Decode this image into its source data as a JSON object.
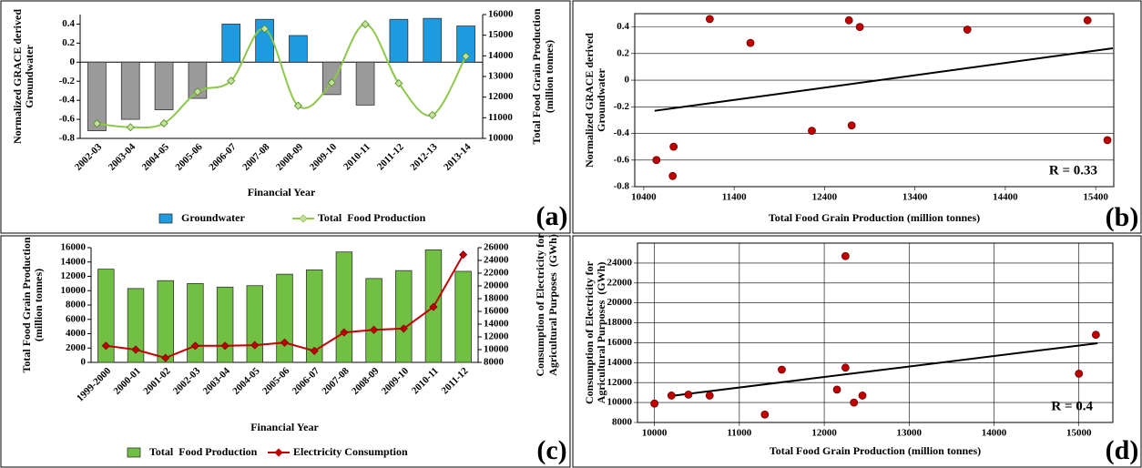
{
  "chart_data": [
    {
      "type": "combo",
      "panel_label": "(a)",
      "x_label": "Financial Year",
      "y_label": [
        "Normalized GRACE derived",
        "Groundwater"
      ],
      "y2_label": [
        "Total Food Grain Production",
        "(million tonnes)"
      ],
      "categories": [
        "2002-03",
        "2003-04",
        "2004-05",
        "2005-06",
        "2006-07",
        "2007-08",
        "2008-09",
        "2009-10",
        "2010-11",
        "2011-12",
        "2012-13",
        "2013-14"
      ],
      "ylim": [
        -0.8,
        0.5
      ],
      "yticks": [
        -0.8,
        -0.6,
        -0.4,
        -0.2,
        0,
        0.2,
        0.4
      ],
      "y2lim": [
        10000,
        16000
      ],
      "y2ticks": [
        10000,
        11000,
        12000,
        13000,
        14000,
        15000,
        16000
      ],
      "series": [
        {
          "name": "Groundwater",
          "type": "bar",
          "color": "#1e9be0",
          "negative_color": "#9a9a9a",
          "values": [
            -0.72,
            -0.6,
            -0.5,
            -0.38,
            0.4,
            0.45,
            0.28,
            -0.34,
            -0.45,
            0.45,
            0.46,
            0.38
          ]
        },
        {
          "name": "Total  Food Production",
          "type": "line",
          "axis": "y2",
          "color": "#8cc84b",
          "marker": "diamond",
          "marker_color": "#c6e0a0",
          "smooth": true,
          "values": [
            10720,
            10540,
            10730,
            12260,
            12790,
            15310,
            11580,
            12700,
            15530,
            12670,
            11130,
            13980
          ]
        }
      ]
    },
    {
      "type": "scatter",
      "panel_label": "(b)",
      "x_label": "Total Food Grain Production (million tonnes)",
      "y_label": [
        "Normalized GRACE derived",
        "Groundwater"
      ],
      "annotation": "R = 0.33",
      "xlim": [
        10300,
        15600
      ],
      "xticks": [
        10400,
        11400,
        12400,
        13400,
        14400,
        15400
      ],
      "ylim": [
        -0.8,
        0.5
      ],
      "yticks": [
        -0.8,
        -0.6,
        -0.4,
        -0.2,
        0,
        0.2,
        0.4
      ],
      "grid": "y",
      "color": "#c00000",
      "x": [
        10720,
        10540,
        10730,
        12260,
        12790,
        15310,
        11580,
        12700,
        15530,
        12670,
        11130,
        13980
      ],
      "y": [
        -0.72,
        -0.6,
        -0.5,
        -0.38,
        0.4,
        0.45,
        0.28,
        -0.34,
        -0.45,
        0.45,
        0.46,
        0.38
      ],
      "trendline": {
        "x": [
          10520,
          15590
        ],
        "y": [
          -0.23,
          0.24
        ]
      }
    },
    {
      "type": "combo",
      "panel_label": "(c)",
      "x_label": "Financial Year",
      "y_label": [
        "Total Food Grain Production",
        "(million tonnes)"
      ],
      "y2_label": [
        "Consumption of Electricity for",
        "Agricultural Purposes  (GWh)"
      ],
      "categories": [
        "1999-2000",
        "2000-01",
        "2001-02",
        "2002-03",
        "2003-04",
        "2004-05",
        "2005-06",
        "2006-07",
        "2007-08",
        "2008-09",
        "2009-10",
        "2010-11",
        "2011-12"
      ],
      "ylim": [
        0,
        16000
      ],
      "yticks": [
        0,
        2000,
        4000,
        6000,
        8000,
        10000,
        12000,
        14000,
        16000
      ],
      "y2lim": [
        8000,
        26000
      ],
      "y2ticks": [
        8000,
        10000,
        12000,
        14000,
        16000,
        18000,
        20000,
        22000,
        24000,
        26000
      ],
      "series": [
        {
          "name": "Total  Food Production",
          "type": "bar",
          "color": "#72c043",
          "values": [
            13000,
            10300,
            11400,
            11000,
            10500,
            10700,
            12300,
            12900,
            15400,
            11700,
            12800,
            15700,
            12700
          ]
        },
        {
          "name": "Electricity Consumption",
          "type": "line",
          "axis": "y2",
          "color": "#c00000",
          "marker": "diamond",
          "marker_color": "#c00000",
          "smooth": false,
          "values": [
            10600,
            10000,
            8700,
            10600,
            10600,
            10700,
            11100,
            9800,
            12700,
            13100,
            13300,
            16700,
            24900
          ]
        }
      ]
    },
    {
      "type": "scatter",
      "panel_label": "(d)",
      "x_label": "Total Food Grain Production (million tonnes)",
      "y_label": [
        "Consumption of Electricity for",
        "Agricultural Purposes  (GWh)"
      ],
      "annotation": "R = 0.4",
      "xlim": [
        9800,
        15400
      ],
      "xticks": [
        10000,
        11000,
        12000,
        13000,
        14000,
        15000
      ],
      "ylim": [
        8000,
        26000
      ],
      "yticks": [
        8000,
        10000,
        12000,
        14000,
        16000,
        18000,
        20000,
        22000,
        24000
      ],
      "grid": "both",
      "color": "#c00000",
      "x": [
        10000,
        10200,
        10400,
        10650,
        11300,
        11500,
        12150,
        12250,
        12250,
        12350,
        12450,
        15000,
        15200
      ],
      "y": [
        9900,
        10700,
        10800,
        10700,
        8800,
        13300,
        11300,
        24700,
        13500,
        10000,
        10700,
        12900,
        16800
      ],
      "trendline": {
        "x": [
          10230,
          15220
        ],
        "y": [
          10700,
          15950
        ]
      }
    }
  ]
}
